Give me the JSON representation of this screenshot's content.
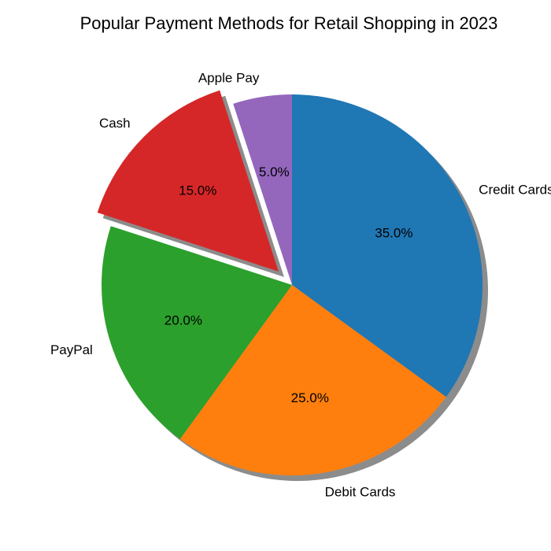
{
  "chart_data": {
    "type": "pie",
    "title": "Popular Payment Methods for Retail Shopping in 2023",
    "categories": [
      "Credit Cards",
      "Debit Cards",
      "PayPal",
      "Cash",
      "Apple Pay"
    ],
    "values": [
      35.0,
      25.0,
      20.0,
      15.0,
      5.0
    ],
    "percent_labels": [
      "35.0%",
      "25.0%",
      "20.0%",
      "15.0%",
      "5.0%"
    ],
    "colors": [
      "#1f77b4",
      "#ff7f0e",
      "#2ca02c",
      "#d62728",
      "#9467bd"
    ],
    "exploded": [
      "Cash"
    ],
    "start_angle_deg": 90,
    "direction": "clockwise",
    "shadow": true
  }
}
